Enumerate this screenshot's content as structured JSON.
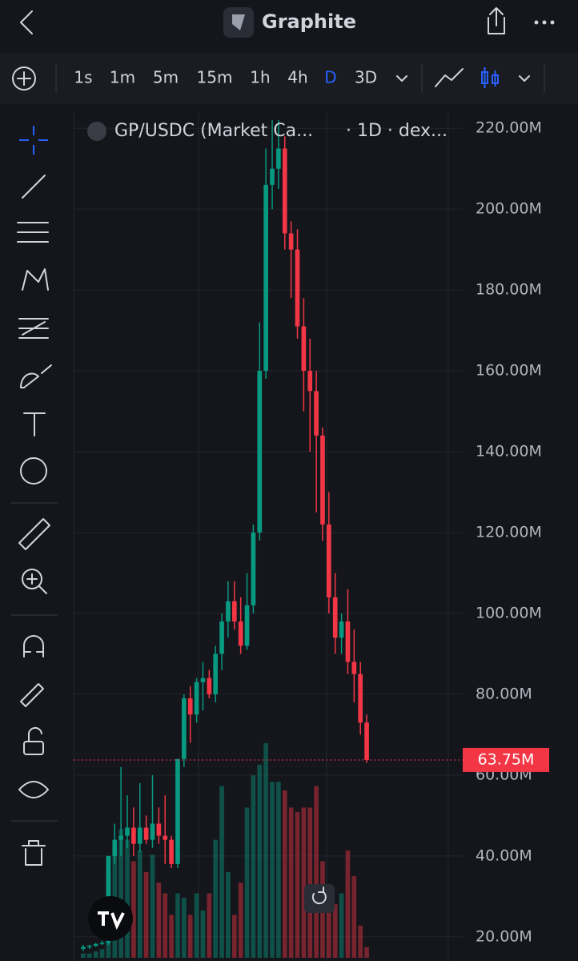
{
  "header": {
    "title": "Graphite"
  },
  "toolbar": {
    "intervals": [
      "1s",
      "1m",
      "5m",
      "15m",
      "1h",
      "4h",
      "D",
      "3D"
    ],
    "active_index": 6
  },
  "chart_data": {
    "type": "candlestick",
    "symbol": "GP/USDC (Market Ca...",
    "info": "· 1D · dex...",
    "up_color": "#089981",
    "down_color": "#f23645",
    "open": [
      17,
      17.5,
      17.8,
      18.2,
      18.5,
      40,
      44,
      45,
      47,
      43,
      47,
      44,
      48,
      45,
      44,
      38,
      64,
      79,
      75,
      83,
      84,
      80,
      90,
      98,
      103,
      98,
      92,
      102,
      120,
      160,
      206,
      210,
      215,
      194,
      190,
      171,
      160,
      155,
      144,
      122,
      104,
      94,
      98,
      88,
      85,
      73
    ],
    "high": [
      18,
      18,
      18.5,
      19,
      40,
      48,
      62,
      55,
      52,
      58,
      50,
      60,
      52,
      55,
      45,
      64,
      80,
      82,
      84,
      88,
      86,
      92,
      100,
      108,
      108,
      104,
      110,
      122,
      172,
      215,
      222,
      222,
      218,
      197,
      195,
      178,
      168,
      160,
      146,
      130,
      110,
      100,
      106,
      96,
      88,
      75
    ],
    "low": [
      16.5,
      17,
      17.5,
      18,
      18,
      38,
      40,
      42,
      40,
      41,
      43,
      42,
      43,
      38,
      37,
      37,
      62,
      68,
      73,
      76,
      79,
      78,
      86,
      94,
      96,
      90,
      91,
      100,
      118,
      158,
      200,
      205,
      190,
      178,
      168,
      150,
      140,
      125,
      118,
      100,
      90,
      90,
      85,
      78,
      70,
      63
    ],
    "close": [
      17.5,
      17.8,
      18.2,
      18.5,
      40,
      44,
      45,
      47,
      43,
      47,
      44,
      48,
      45,
      44,
      38,
      64,
      79,
      75,
      83,
      84,
      80,
      90,
      98,
      103,
      98,
      92,
      102,
      120,
      160,
      206,
      210,
      215,
      194,
      190,
      171,
      160,
      155,
      144,
      122,
      104,
      94,
      98,
      88,
      85,
      73,
      63.75
    ],
    "volume": [
      2,
      2,
      3,
      4,
      40,
      50,
      60,
      55,
      45,
      50,
      40,
      48,
      35,
      30,
      20,
      30,
      28,
      20,
      30,
      22,
      30,
      55,
      80,
      40,
      20,
      35,
      70,
      85,
      90,
      100,
      82,
      82,
      78,
      70,
      68,
      70,
      70,
      80,
      45,
      30,
      25,
      30,
      50,
      38,
      15,
      5
    ],
    "vlim": [
      0,
      100
    ],
    "ylim": [
      16,
      224
    ],
    "yticks": [
      {
        "value": 220,
        "label": "220.00M"
      },
      {
        "value": 200,
        "label": "200.00M"
      },
      {
        "value": 180,
        "label": "180.00M"
      },
      {
        "value": 160,
        "label": "160.00M"
      },
      {
        "value": 140,
        "label": "140.00M"
      },
      {
        "value": 120,
        "label": "120.00M"
      },
      {
        "value": 100,
        "label": "100.00M"
      },
      {
        "value": 80,
        "label": "80.00M"
      },
      {
        "value": 60,
        "label": "60.00M"
      },
      {
        "value": 40,
        "label": "40.00M"
      },
      {
        "value": 20,
        "label": "20.00M"
      }
    ],
    "last_price": {
      "value": 63.75,
      "label": "63.75M"
    },
    "grid": true
  }
}
